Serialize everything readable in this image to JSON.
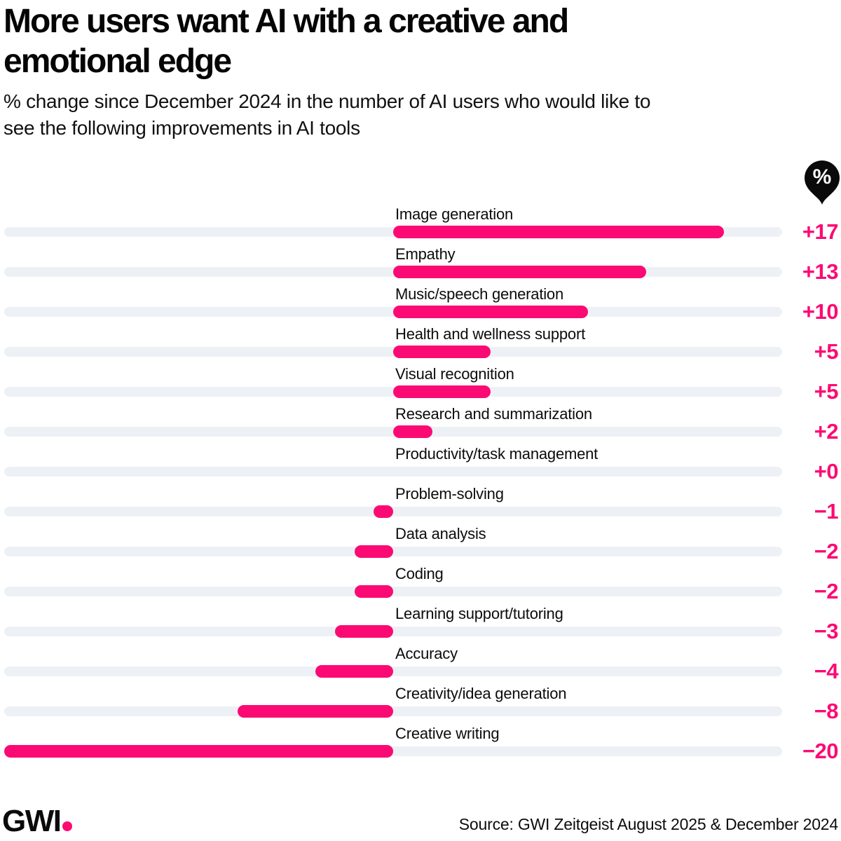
{
  "header": {
    "title_line1": "More users want AI with a creative and",
    "title_line2": "emotional edge",
    "subtitle_line1": "% change since December 2024 in the number of AI users who would like to",
    "subtitle_line2": "see the following improvements in AI tools"
  },
  "unit_badge": {
    "symbol": "%"
  },
  "chart_data": {
    "type": "bar",
    "orientation": "horizontal",
    "title": "More users want AI with a creative and emotional edge",
    "subtitle": "% change since December 2024 in the number of AI users who would like to see the following improvements in AI tools",
    "unit": "%",
    "xlim": [
      -20,
      20
    ],
    "zero_baseline_centered": true,
    "grid": false,
    "legend": false,
    "categories": [
      "Image generation",
      "Empathy",
      "Music/speech generation",
      "Health and wellness support",
      "Visual recognition",
      "Research and summarization",
      "Productivity/task management",
      "Problem-solving",
      "Data analysis",
      "Coding",
      "Learning support/tutoring",
      "Accuracy",
      "Creativity/idea generation",
      "Creative writing"
    ],
    "values": [
      17,
      13,
      10,
      5,
      5,
      2,
      0,
      -1,
      -2,
      -2,
      -3,
      -4,
      -8,
      -20
    ],
    "value_labels": [
      "+17",
      "+13",
      "+10",
      "+5",
      "+5",
      "+2",
      "+0",
      "−1",
      "−2",
      "−2",
      "−3",
      "−4",
      "−8",
      "−20"
    ]
  },
  "footer": {
    "logo_text": "GWI",
    "source": "Source: GWI Zeitgeist August 2025 & December 2024"
  },
  "colors": {
    "accent_pink": "#fc0a74",
    "track_gray": "#edf1f6",
    "badge_black": "#0a0a0a",
    "text_black": "#0a0a0a",
    "background": "#ffffff"
  }
}
